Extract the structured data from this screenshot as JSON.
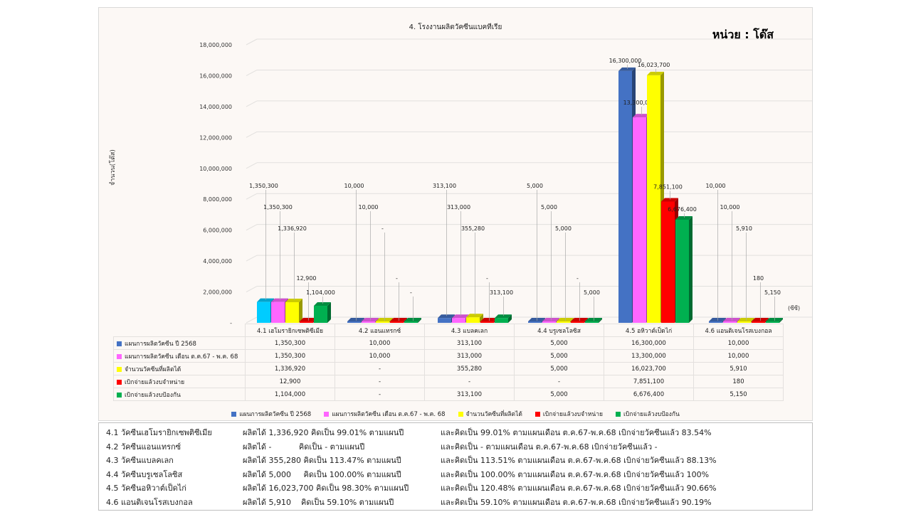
{
  "chart_data": {
    "type": "bar",
    "title": "4. โรงงานผลิตวัคซีนแบคทีเรีย",
    "unit_label": "หน่วย : โด๊ส",
    "ylabel": "จำนวน(โด๊ส)",
    "unit_note": "(ซีซี)",
    "ylim": [
      0,
      18000000
    ],
    "yticks": [
      "-",
      "2,000,000",
      "4,000,000",
      "6,000,000",
      "8,000,000",
      "10,000,000",
      "12,000,000",
      "14,000,000",
      "16,000,000",
      "18,000,000"
    ],
    "grid": true,
    "legend_position": "bottom",
    "categories": [
      "4.1 เฮโมรายิกเซพติซีเมีย",
      "4.2 แอนแทรกซ์",
      "4.3 แบลคเลก",
      "4.4 บรูเซลโลซิส",
      "4.5 อหิวาต์เป็ดไก่",
      "4.6 แอนติเจนโรสเบงกอล"
    ],
    "series": [
      {
        "name": "แผนการผลิตวัคซีน ปี 2568",
        "color": "#4472c4",
        "values": [
          1350300,
          10000,
          313100,
          5000,
          16300000,
          10000
        ],
        "labels": [
          "1,350,300",
          "10,000",
          "313,100",
          "5,000",
          "16,300,000",
          "10,000"
        ]
      },
      {
        "name": "แผนการผลิตวัคซีน เดือน ต.ค.67 - พ.ค. 68",
        "color": "#ff66ff",
        "values": [
          1350300,
          10000,
          313000,
          5000,
          13300000,
          10000
        ],
        "labels": [
          "1,350,300",
          "10,000",
          "313,000",
          "5,000",
          "13,300,000",
          "10,000"
        ]
      },
      {
        "name": "จำนวนวัคซีนที่ผลิตได้",
        "color": "#ffff00",
        "values": [
          1336920,
          0,
          355280,
          5000,
          16023700,
          5910
        ],
        "labels": [
          "1,336,920",
          "-",
          "355,280",
          "5,000",
          "16,023,700",
          "5,910"
        ]
      },
      {
        "name": "เบิกจ่ายแล้วงบจำหน่าย",
        "color": "#ff0000",
        "values": [
          12900,
          0,
          0,
          0,
          7851100,
          180
        ],
        "labels": [
          "12,900",
          "-",
          "-",
          "-",
          "7,851,100",
          "180"
        ]
      },
      {
        "name": "เบิกจ่ายแล้วงบป้องกัน",
        "color": "#00b050",
        "values": [
          1104000,
          0,
          313100,
          5000,
          6676400,
          5150
        ],
        "labels": [
          "1,104,000",
          "-",
          "313,100",
          "5,000",
          "6,676,400",
          "5,150"
        ]
      }
    ],
    "highlight_bar_color": "#00ccff"
  },
  "notes": [
    {
      "name": "4.1 วัคซีนเฮโมรายิกเซพติซีเมีย",
      "produced": "ผลิตได้ 1,336,920 คิดเป็น 99.01% ตามแผนปี",
      "rest": "และคิดเป็น 99.01% ตามแผนเดือน ต.ค.67-พ.ค.68 เบิกจ่ายวัคซีนแล้ว 83.54%"
    },
    {
      "name": "4.2 วัคซีนแอนแทรกซ์",
      "produced": "ผลิตได้ -           คิดเป็น - ตามแผนปี",
      "rest": "และคิดเป็น - ตามแผนเดือน ต.ค.67-พ.ค.68 เบิกจ่ายวัคซีนแล้ว -"
    },
    {
      "name": "4.3 วัคซีนแบลคเลก",
      "produced": "ผลิตได้ 355,280 คิดเป็น 113.47% ตามแผนปี",
      "rest": "และคิดเป็น 113.51% ตามแผนเดือน ต.ค.67-พ.ค.68 เบิกจ่ายวัคซีนแล้ว 88.13%"
    },
    {
      "name": "4.4 วัคซีนบรูเซลโลซิส",
      "produced": "ผลิตได้ 5,000     คิดเป็น 100.00% ตามแผนปี",
      "rest": "และคิดเป็น 100.00% ตามแผนเดือน ต.ค.67-พ.ค.68 เบิกจ่ายวัคซีนแล้ว 100%"
    },
    {
      "name": "4.5 วัคซีนอหิวาต์เป็ดไก่",
      "produced": "ผลิตได้ 16,023,700 คิดเป็น 98.30% ตามแผนปี",
      "rest": "และคิดเป็น 120.48% ตามแผนเดือน ต.ค.67-พ.ค.68 เบิกจ่ายวัคซีนแล้ว 90.66%"
    },
    {
      "name": "4.6 แอนติเจนโรสเบงกอล",
      "produced": "ผลิตได้ 5,910    คิดเป็น 59.10% ตามแผนปี",
      "rest": "และคิดเป็น 59.10% ตามแผนเดือน ต.ค.67-พ.ค.68 เบิกจ่ายวัคซีนแล้ว 90.19%"
    }
  ]
}
